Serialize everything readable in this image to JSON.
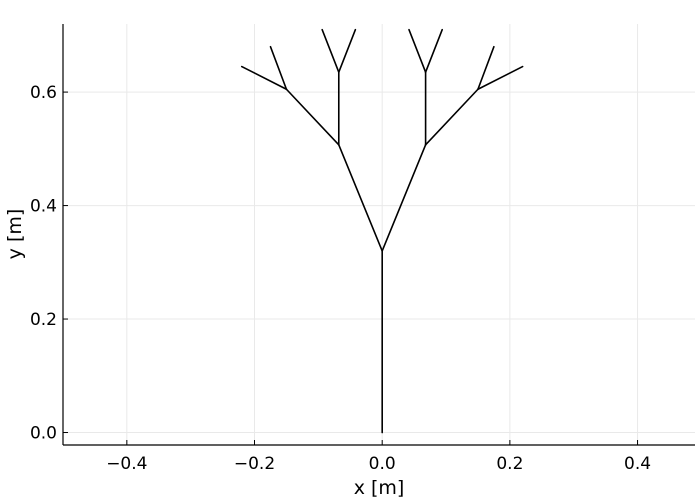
{
  "chart_data": {
    "type": "line",
    "title": "",
    "xlabel": "x [m]",
    "ylabel": "y [m]",
    "xlim": [
      -0.5,
      0.49
    ],
    "ylim": [
      -0.022,
      0.72
    ],
    "xticks": [
      -0.4,
      -0.2,
      0.0,
      0.2,
      0.4
    ],
    "xtick_labels": [
      "−0.4",
      "−0.2",
      "0.0",
      "0.2",
      "0.4"
    ],
    "yticks": [
      0.0,
      0.2,
      0.4,
      0.6
    ],
    "ytick_labels": [
      "0.0",
      "0.2",
      "0.4",
      "0.6"
    ],
    "grid": true,
    "line_color": "#000000",
    "segments": [
      {
        "x": [
          0.0,
          0.0
        ],
        "y": [
          0.0,
          0.32
        ]
      },
      {
        "x": [
          0.0,
          -0.068
        ],
        "y": [
          0.32,
          0.507
        ]
      },
      {
        "x": [
          0.0,
          0.068
        ],
        "y": [
          0.32,
          0.507
        ]
      },
      {
        "x": [
          -0.068,
          -0.068
        ],
        "y": [
          0.507,
          0.635
        ]
      },
      {
        "x": [
          -0.068,
          -0.15
        ],
        "y": [
          0.507,
          0.605
        ]
      },
      {
        "x": [
          0.068,
          0.068
        ],
        "y": [
          0.507,
          0.635
        ]
      },
      {
        "x": [
          0.068,
          0.15
        ],
        "y": [
          0.507,
          0.605
        ]
      },
      {
        "x": [
          -0.068,
          -0.094
        ],
        "y": [
          0.635,
          0.71
        ]
      },
      {
        "x": [
          -0.068,
          -0.042
        ],
        "y": [
          0.635,
          0.71
        ]
      },
      {
        "x": [
          0.068,
          0.042
        ],
        "y": [
          0.635,
          0.71
        ]
      },
      {
        "x": [
          0.068,
          0.094
        ],
        "y": [
          0.635,
          0.71
        ]
      },
      {
        "x": [
          -0.15,
          -0.22
        ],
        "y": [
          0.605,
          0.645
        ]
      },
      {
        "x": [
          -0.15,
          -0.175
        ],
        "y": [
          0.605,
          0.68
        ]
      },
      {
        "x": [
          0.15,
          0.22
        ],
        "y": [
          0.605,
          0.645
        ]
      },
      {
        "x": [
          0.15,
          0.175
        ],
        "y": [
          0.605,
          0.68
        ]
      }
    ]
  }
}
